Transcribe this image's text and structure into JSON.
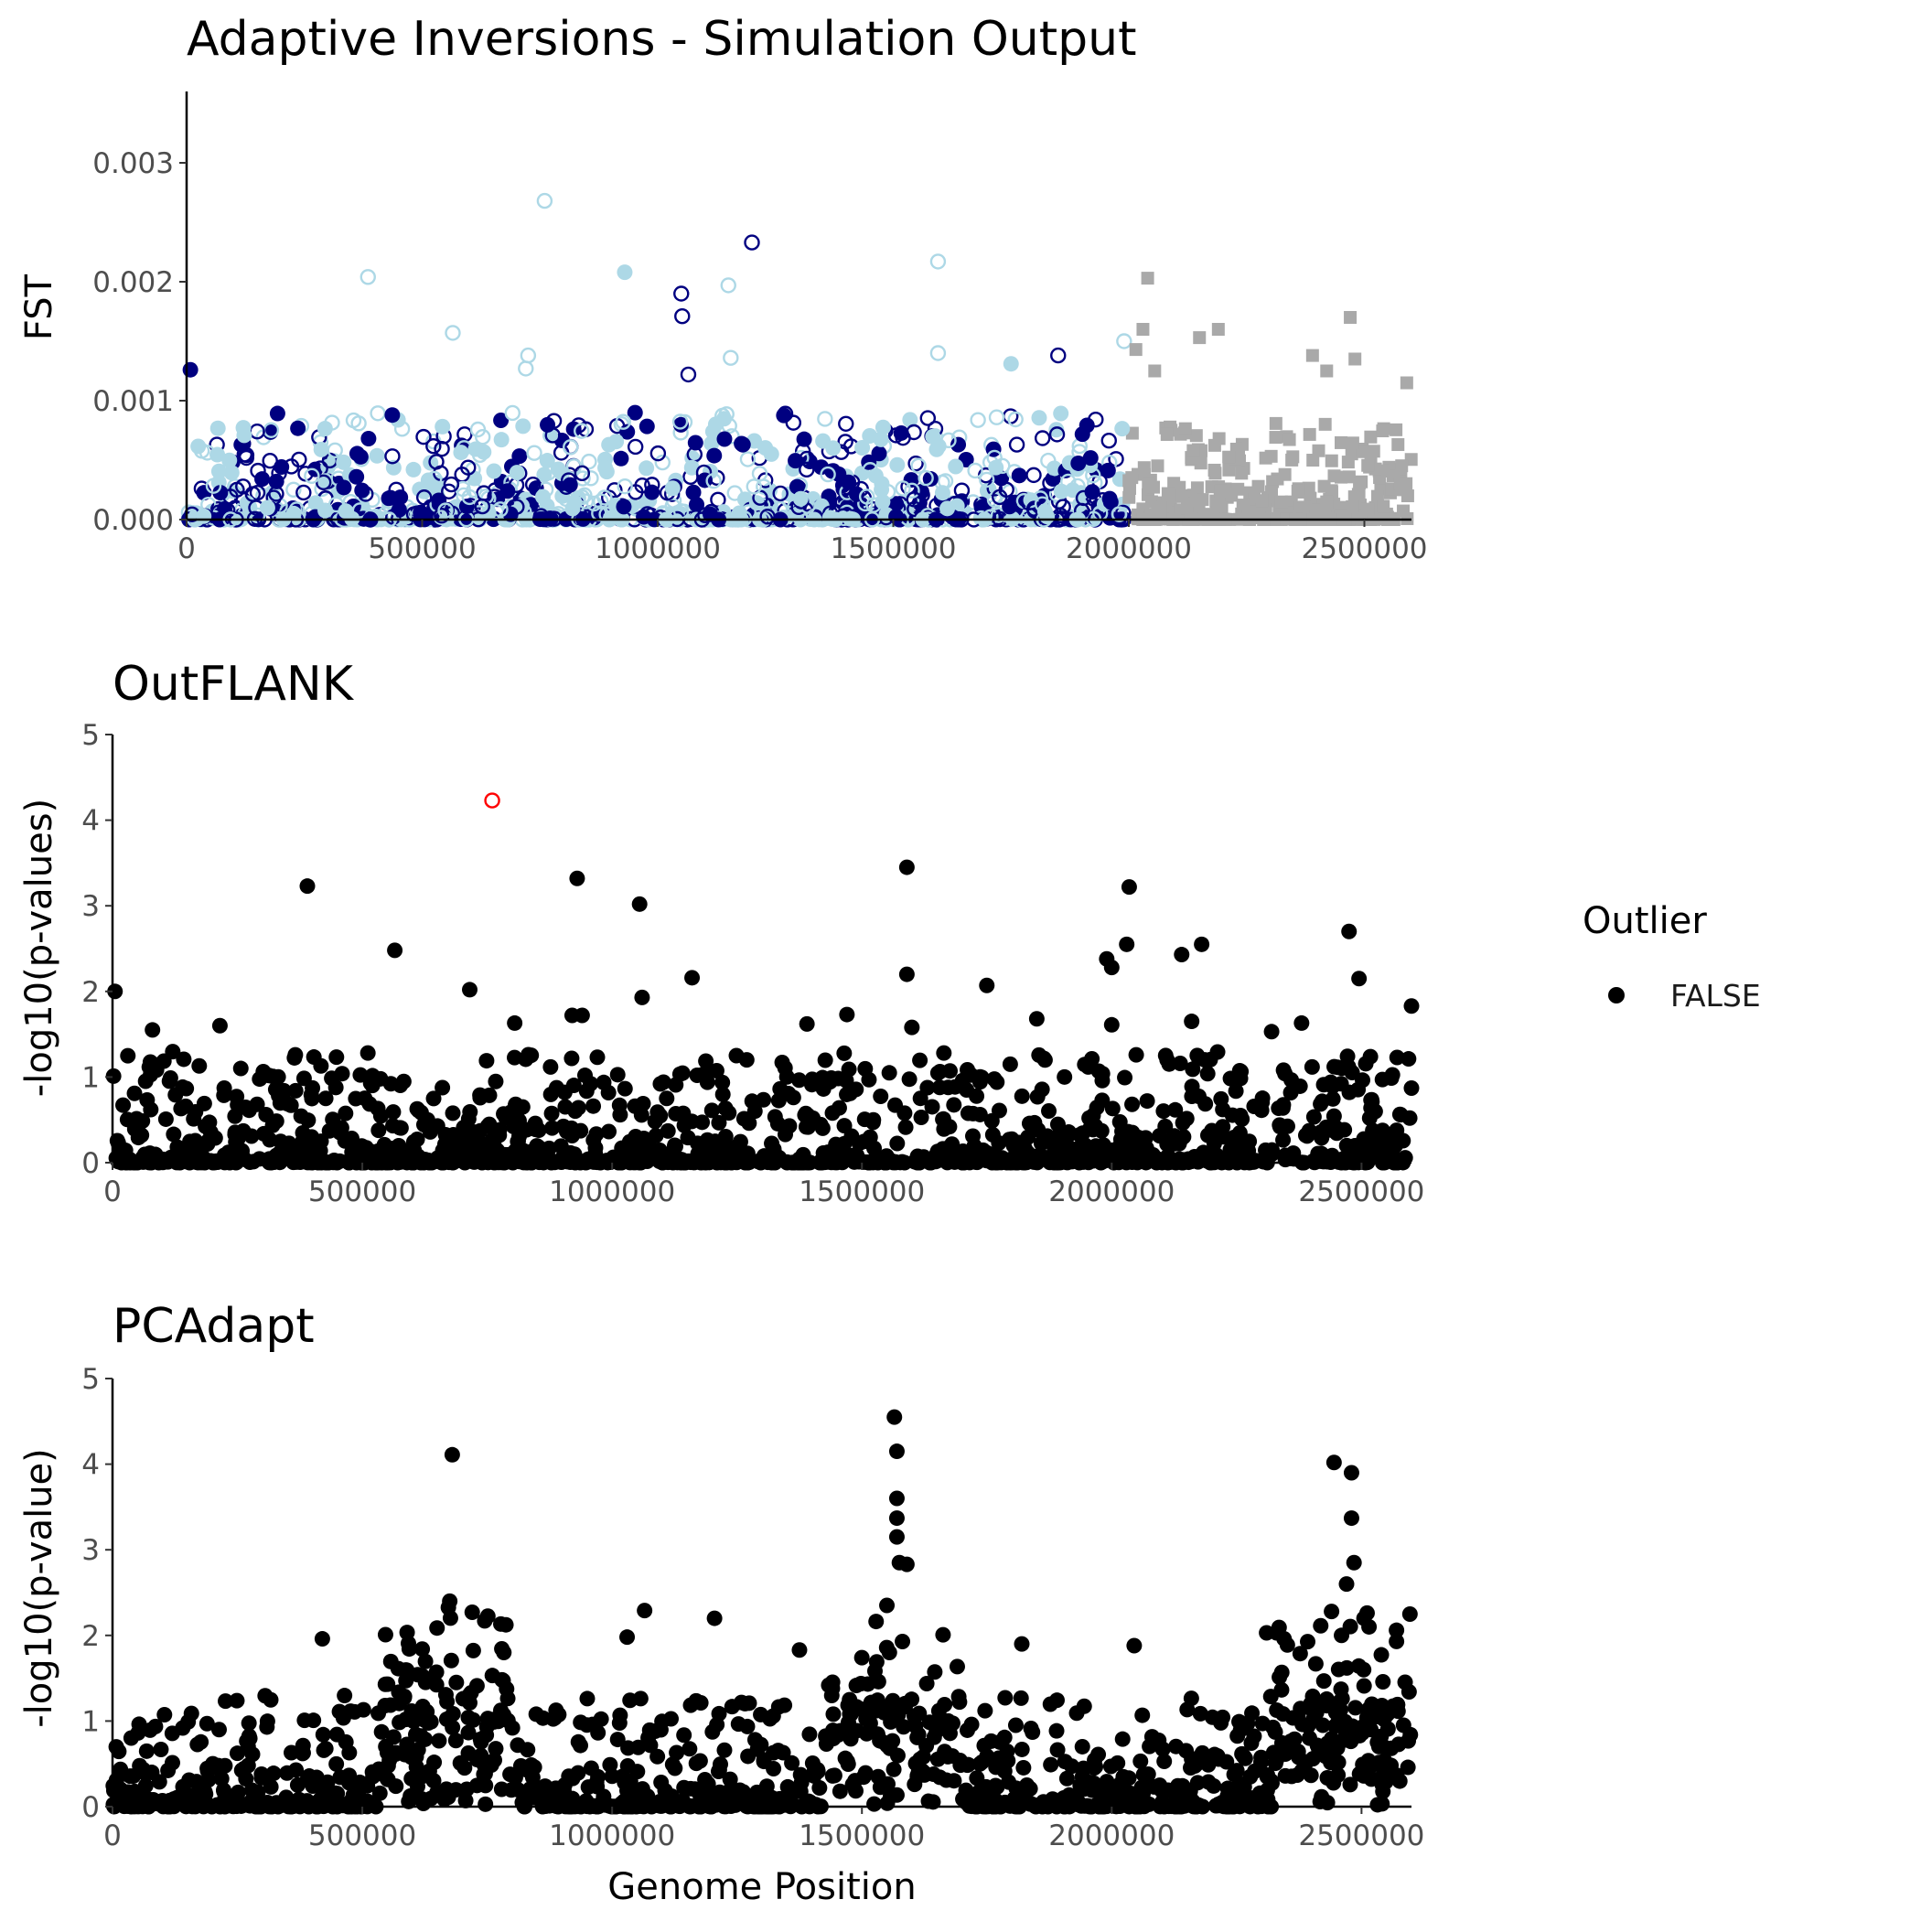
{
  "chart_data": [
    {
      "type": "scatter",
      "title": "Adaptive Inversions - Simulation Output",
      "xlabel": "",
      "ylabel": "FST",
      "xlim": [
        0,
        2600000
      ],
      "ylim": [
        0,
        0.0036
      ],
      "xticks": [
        0,
        500000,
        1000000,
        1500000,
        2000000,
        2500000
      ],
      "xtick_labels": [
        "0",
        "500000",
        "1000000",
        "1500000",
        "2000000",
        "2500000"
      ],
      "yticks": [
        0,
        0.001,
        0.002,
        0.003
      ],
      "ytick_labels": [
        "0.000",
        "0.001",
        "0.002",
        "0.003"
      ],
      "grid": false,
      "colors": {
        "dark": "#000080",
        "light": "#add8e6",
        "neutral": "#a9a9a9"
      },
      "highlight_points": [
        {
          "x": 760000,
          "y": 0.00268,
          "color": "#add8e6",
          "shape": "open-circle"
        },
        {
          "x": 1200000,
          "y": 0.00233,
          "color": "#000080",
          "shape": "open-circle"
        },
        {
          "x": 1595000,
          "y": 0.00217,
          "color": "#add8e6",
          "shape": "open-circle"
        },
        {
          "x": 385000,
          "y": 0.00204,
          "color": "#add8e6",
          "shape": "open-circle"
        },
        {
          "x": 930000,
          "y": 0.00208,
          "color": "#add8e6",
          "shape": "filled-circle"
        },
        {
          "x": 1150000,
          "y": 0.00197,
          "color": "#add8e6",
          "shape": "open-circle"
        },
        {
          "x": 1050000,
          "y": 0.0019,
          "color": "#000080",
          "shape": "open-circle"
        },
        {
          "x": 1052000,
          "y": 0.00171,
          "color": "#000080",
          "shape": "open-circle"
        },
        {
          "x": 565000,
          "y": 0.00157,
          "color": "#add8e6",
          "shape": "open-circle"
        },
        {
          "x": 2040000,
          "y": 0.00203,
          "color": "#a9a9a9",
          "shape": "square"
        },
        {
          "x": 2470000,
          "y": 0.0017,
          "color": "#a9a9a9",
          "shape": "square"
        },
        {
          "x": 2190000,
          "y": 0.0016,
          "color": "#a9a9a9",
          "shape": "square"
        },
        {
          "x": 2030000,
          "y": 0.0016,
          "color": "#a9a9a9",
          "shape": "square"
        },
        {
          "x": 2150000,
          "y": 0.00153,
          "color": "#a9a9a9",
          "shape": "square"
        },
        {
          "x": 1990000,
          "y": 0.0015,
          "color": "#add8e6",
          "shape": "open-circle"
        },
        {
          "x": 2015000,
          "y": 0.00143,
          "color": "#a9a9a9",
          "shape": "square"
        },
        {
          "x": 1595000,
          "y": 0.0014,
          "color": "#add8e6",
          "shape": "open-circle"
        },
        {
          "x": 1850000,
          "y": 0.00138,
          "color": "#000080",
          "shape": "open-circle"
        },
        {
          "x": 1155000,
          "y": 0.00136,
          "color": "#add8e6",
          "shape": "open-circle"
        },
        {
          "x": 2480000,
          "y": 0.00135,
          "color": "#a9a9a9",
          "shape": "square"
        },
        {
          "x": 725000,
          "y": 0.00138,
          "color": "#add8e6",
          "shape": "open-circle"
        },
        {
          "x": 2390000,
          "y": 0.00138,
          "color": "#a9a9a9",
          "shape": "square"
        },
        {
          "x": 1750000,
          "y": 0.00131,
          "color": "#add8e6",
          "shape": "filled-circle"
        },
        {
          "x": 720000,
          "y": 0.00127,
          "color": "#add8e6",
          "shape": "open-circle"
        },
        {
          "x": 2420000,
          "y": 0.00125,
          "color": "#a9a9a9",
          "shape": "square"
        },
        {
          "x": 2055000,
          "y": 0.00125,
          "color": "#a9a9a9",
          "shape": "square"
        },
        {
          "x": 8000,
          "y": 0.00126,
          "color": "#000080",
          "shape": "filled-circle"
        },
        {
          "x": 1065000,
          "y": 0.00122,
          "color": "#000080",
          "shape": "open-circle"
        },
        {
          "x": 2590000,
          "y": 0.00115,
          "color": "#a9a9a9",
          "shape": "square"
        }
      ]
    },
    {
      "type": "scatter",
      "title": "OutFLANK",
      "xlabel": "",
      "ylabel": "-log10(p-values)",
      "xlim": [
        0,
        2600000
      ],
      "ylim": [
        0,
        5
      ],
      "xticks": [
        0,
        500000,
        1000000,
        1500000,
        2000000,
        2500000
      ],
      "xtick_labels": [
        "0",
        "500000",
        "1000000",
        "1500000",
        "2000000",
        "2500000"
      ],
      "yticks": [
        0,
        1,
        2,
        3,
        4,
        5
      ],
      "ytick_labels": [
        "0",
        "1",
        "2",
        "3",
        "4",
        "5"
      ],
      "grid": false,
      "legend": {
        "title": "Outlier",
        "entries": [
          "FALSE"
        ],
        "position": "right"
      },
      "outlier_point": {
        "x": 760000,
        "y": 4.23,
        "color": "#ff0000"
      },
      "highlight_points": [
        {
          "x": 1590000,
          "y": 3.45
        },
        {
          "x": 930000,
          "y": 3.32
        },
        {
          "x": 390000,
          "y": 3.23
        },
        {
          "x": 2035000,
          "y": 3.22
        },
        {
          "x": 1055000,
          "y": 3.02
        },
        {
          "x": 2475000,
          "y": 2.7
        },
        {
          "x": 2030000,
          "y": 2.55
        },
        {
          "x": 2180000,
          "y": 2.55
        },
        {
          "x": 565000,
          "y": 2.48
        },
        {
          "x": 2140000,
          "y": 2.43
        },
        {
          "x": 1990000,
          "y": 2.38
        },
        {
          "x": 2000000,
          "y": 2.28
        },
        {
          "x": 1590000,
          "y": 2.2
        },
        {
          "x": 1160000,
          "y": 2.16
        },
        {
          "x": 2495000,
          "y": 2.15
        },
        {
          "x": 1750000,
          "y": 2.07
        },
        {
          "x": 715000,
          "y": 2.02
        },
        {
          "x": 5000,
          "y": 2.0
        },
        {
          "x": 1060000,
          "y": 1.93
        },
        {
          "x": 2600000,
          "y": 1.83
        },
        {
          "x": 920000,
          "y": 1.72
        },
        {
          "x": 940000,
          "y": 1.72
        },
        {
          "x": 1470000,
          "y": 1.73
        },
        {
          "x": 1850000,
          "y": 1.68
        },
        {
          "x": 2160000,
          "y": 1.65
        },
        {
          "x": 2380000,
          "y": 1.63
        },
        {
          "x": 805000,
          "y": 1.63
        },
        {
          "x": 1390000,
          "y": 1.62
        },
        {
          "x": 215000,
          "y": 1.6
        },
        {
          "x": 2000000,
          "y": 1.61
        },
        {
          "x": 1600000,
          "y": 1.58
        },
        {
          "x": 80000,
          "y": 1.55
        },
        {
          "x": 2320000,
          "y": 1.53
        }
      ]
    },
    {
      "type": "scatter",
      "title": "PCAdapt",
      "xlabel": "Genome Position",
      "ylabel": "-log10(p-value)",
      "xlim": [
        0,
        2600000
      ],
      "ylim": [
        0,
        5
      ],
      "xticks": [
        0,
        500000,
        1000000,
        1500000,
        2000000,
        2500000
      ],
      "xtick_labels": [
        "0",
        "500000",
        "1000000",
        "1500000",
        "2000000",
        "2500000"
      ],
      "yticks": [
        0,
        1,
        2,
        3,
        4,
        5
      ],
      "ytick_labels": [
        "0",
        "1",
        "2",
        "3",
        "4",
        "5"
      ],
      "grid": false,
      "highlight_points": [
        {
          "x": 1565000,
          "y": 4.55
        },
        {
          "x": 1570000,
          "y": 4.15
        },
        {
          "x": 680000,
          "y": 4.11
        },
        {
          "x": 2445000,
          "y": 4.02
        },
        {
          "x": 2480000,
          "y": 3.9
        },
        {
          "x": 1570000,
          "y": 3.6
        },
        {
          "x": 1570000,
          "y": 3.37
        },
        {
          "x": 2480000,
          "y": 3.37
        },
        {
          "x": 1570000,
          "y": 3.15
        },
        {
          "x": 1575000,
          "y": 2.85
        },
        {
          "x": 1590000,
          "y": 2.83
        },
        {
          "x": 2485000,
          "y": 2.85
        },
        {
          "x": 2470000,
          "y": 2.6
        },
        {
          "x": 675000,
          "y": 2.4
        },
        {
          "x": 1550000,
          "y": 2.35
        },
        {
          "x": 1065000,
          "y": 2.29
        },
        {
          "x": 2440000,
          "y": 2.28
        },
        {
          "x": 720000,
          "y": 2.27
        },
        {
          "x": 1205000,
          "y": 2.2
        },
        {
          "x": 2505000,
          "y": 2.2
        },
        {
          "x": 745000,
          "y": 2.17
        },
        {
          "x": 2515000,
          "y": 2.1
        },
        {
          "x": 2570000,
          "y": 2.06
        },
        {
          "x": 1030000,
          "y": 1.98
        },
        {
          "x": 2460000,
          "y": 2.0
        },
        {
          "x": 420000,
          "y": 1.96
        },
        {
          "x": 2330000,
          "y": 2.03
        },
        {
          "x": 2310000,
          "y": 2.03
        },
        {
          "x": 2570000,
          "y": 1.93
        },
        {
          "x": 1820000,
          "y": 1.9
        },
        {
          "x": 2045000,
          "y": 1.88
        },
        {
          "x": 1375000,
          "y": 1.83
        },
        {
          "x": 1555000,
          "y": 1.8
        }
      ]
    }
  ]
}
